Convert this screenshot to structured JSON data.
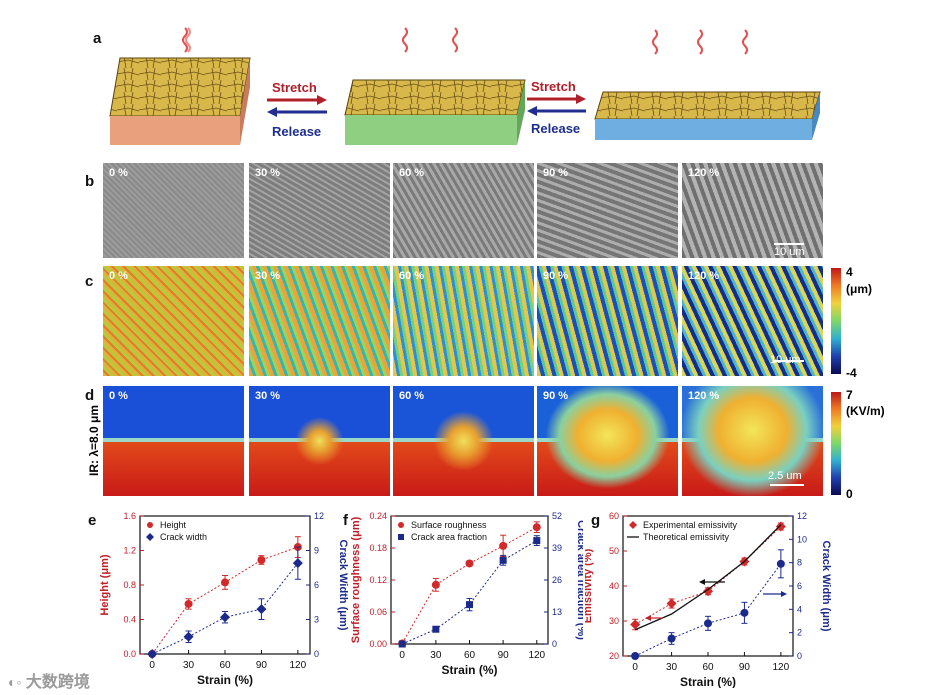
{
  "panels": {
    "a": "a",
    "b": "b",
    "c": "c",
    "d": "d",
    "e": "e",
    "f": "f",
    "g": "g"
  },
  "panel_a": {
    "stretch_label": "Stretch",
    "release_label": "Release",
    "stretch_color": "#b0202a",
    "release_color": "#1f2e8f"
  },
  "strain_labels": [
    "0 %",
    "30 %",
    "60 %",
    "90 %",
    "120 %"
  ],
  "panel_b": {
    "scalebar": "10 um"
  },
  "panel_c": {
    "scalebar": "10 um",
    "cb_max": "4",
    "cb_unit": "(μm)",
    "cb_min": "-4"
  },
  "panel_d": {
    "side_label": "IR: λ=8.0 μm",
    "scalebar": "2.5 um",
    "cb_max": "7",
    "cb_unit": "(KV/m)",
    "cb_min": "0"
  },
  "watermark": "大数跨境",
  "chart_data": [
    {
      "id": "e",
      "type": "line",
      "x": [
        0,
        30,
        60,
        90,
        120
      ],
      "xlabel": "Strain (%)",
      "ylabel": "Height (μm)",
      "ylabel2": "Crack Width (μm)",
      "ylim": [
        0,
        1.6
      ],
      "ylim2": [
        0,
        12
      ],
      "yticks": [
        "0.0",
        "0.4",
        "0.8",
        "1.2",
        "1.6"
      ],
      "yticks2": [
        "0",
        "3",
        "6",
        "9",
        "12"
      ],
      "xticks": [
        "0",
        "30",
        "60",
        "90",
        "120"
      ],
      "legend": "top-left",
      "series": [
        {
          "name": "Height",
          "axis": "left",
          "color": "#d02a2a",
          "marker": "circle",
          "values": [
            0.0,
            0.58,
            0.83,
            1.09,
            1.24
          ],
          "errors": [
            0.02,
            0.06,
            0.08,
            0.05,
            0.12
          ]
        },
        {
          "name": "Crack width",
          "axis": "right",
          "color": "#1c2a8c",
          "marker": "diamond",
          "values": [
            0.0,
            1.5,
            3.2,
            3.9,
            7.9
          ],
          "errors": [
            0.2,
            0.5,
            0.5,
            0.9,
            1.4
          ]
        }
      ]
    },
    {
      "id": "f",
      "type": "line",
      "x": [
        0,
        30,
        60,
        90,
        120
      ],
      "xlabel": "Strain (%)",
      "ylabel": "Surface roughness (μm)",
      "ylabel2": "Crack area fraction (%)",
      "ylim": [
        0,
        0.24
      ],
      "ylim2": [
        0,
        52
      ],
      "yticks": [
        "0.00",
        "0.06",
        "0.12",
        "0.18",
        "0.24"
      ],
      "yticks2": [
        "0",
        "13",
        "26",
        "39",
        "52"
      ],
      "xticks": [
        "0",
        "30",
        "60",
        "90",
        "120"
      ],
      "legend": "top-left",
      "series": [
        {
          "name": "Surface roughness",
          "axis": "left",
          "color": "#d02a2a",
          "marker": "circle",
          "values": [
            0.001,
            0.111,
            0.151,
            0.184,
            0.219
          ],
          "errors": [
            0.002,
            0.012,
            0.005,
            0.02,
            0.01
          ]
        },
        {
          "name": "Crack area fraction",
          "axis": "right",
          "color": "#1c2a8c",
          "marker": "square",
          "values": [
            0,
            6,
            16,
            34,
            42
          ],
          "errors": [
            0.5,
            0.8,
            2.5,
            2,
            2
          ]
        }
      ]
    },
    {
      "id": "g",
      "type": "line",
      "x": [
        0,
        30,
        60,
        90,
        120
      ],
      "xlabel": "Strain (%)",
      "ylabel": "Emissivity (%)",
      "ylabel2": "Crack Width (μm)",
      "ylim": [
        20,
        60
      ],
      "ylim2": [
        0,
        12
      ],
      "yticks": [
        "20",
        "30",
        "40",
        "50",
        "60"
      ],
      "yticks2": [
        "0",
        "2",
        "4",
        "6",
        "8",
        "10",
        "12"
      ],
      "xticks": [
        "0",
        "30",
        "60",
        "90",
        "120"
      ],
      "legend": "top-left",
      "series": [
        {
          "name": "Experimental emissivity",
          "axis": "left",
          "color": "#d02a2a",
          "marker": "diamond",
          "values": [
            29,
            35,
            38.5,
            47,
            57
          ],
          "errors": [
            1.5,
            1.3,
            1,
            1,
            1
          ]
        },
        {
          "name": "Theoretical emissivity",
          "axis": "left",
          "color": "#111111",
          "marker": "none",
          "line": "solid",
          "values": [
            27.5,
            32,
            39,
            47,
            57.5
          ]
        },
        {
          "name": "",
          "axis": "right",
          "color": "#1c2a8c",
          "marker": "circle",
          "values": [
            0,
            1.5,
            2.8,
            3.7,
            7.9
          ],
          "errors": [
            0.2,
            0.5,
            0.6,
            0.9,
            1.2
          ]
        }
      ]
    }
  ]
}
